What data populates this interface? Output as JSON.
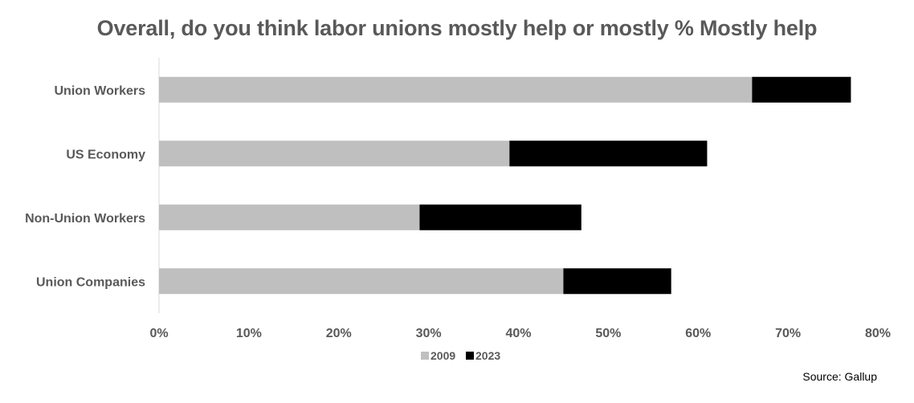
{
  "chart_data": {
    "type": "bar",
    "orientation": "horizontal",
    "stacked": true,
    "title": "Overall, do you think labor unions mostly help or mostly % Mostly help",
    "categories": [
      "Union Workers",
      "US Economy",
      "Non-Union Workers",
      "Union Companies"
    ],
    "series": [
      {
        "name": "2009",
        "values": [
          66,
          39,
          29,
          45
        ],
        "color": "#bfbfbf"
      },
      {
        "name": "2023",
        "values": [
          11,
          22,
          18,
          12
        ],
        "color": "#000000"
      }
    ],
    "xlim": [
      0,
      80
    ],
    "xticks": [
      0,
      10,
      20,
      30,
      40,
      50,
      60,
      70,
      80
    ],
    "tick_suffix": "%",
    "grid": false,
    "legend_position": "bottom",
    "xlabel": "",
    "ylabel": ""
  },
  "source": "Source: Gallup"
}
